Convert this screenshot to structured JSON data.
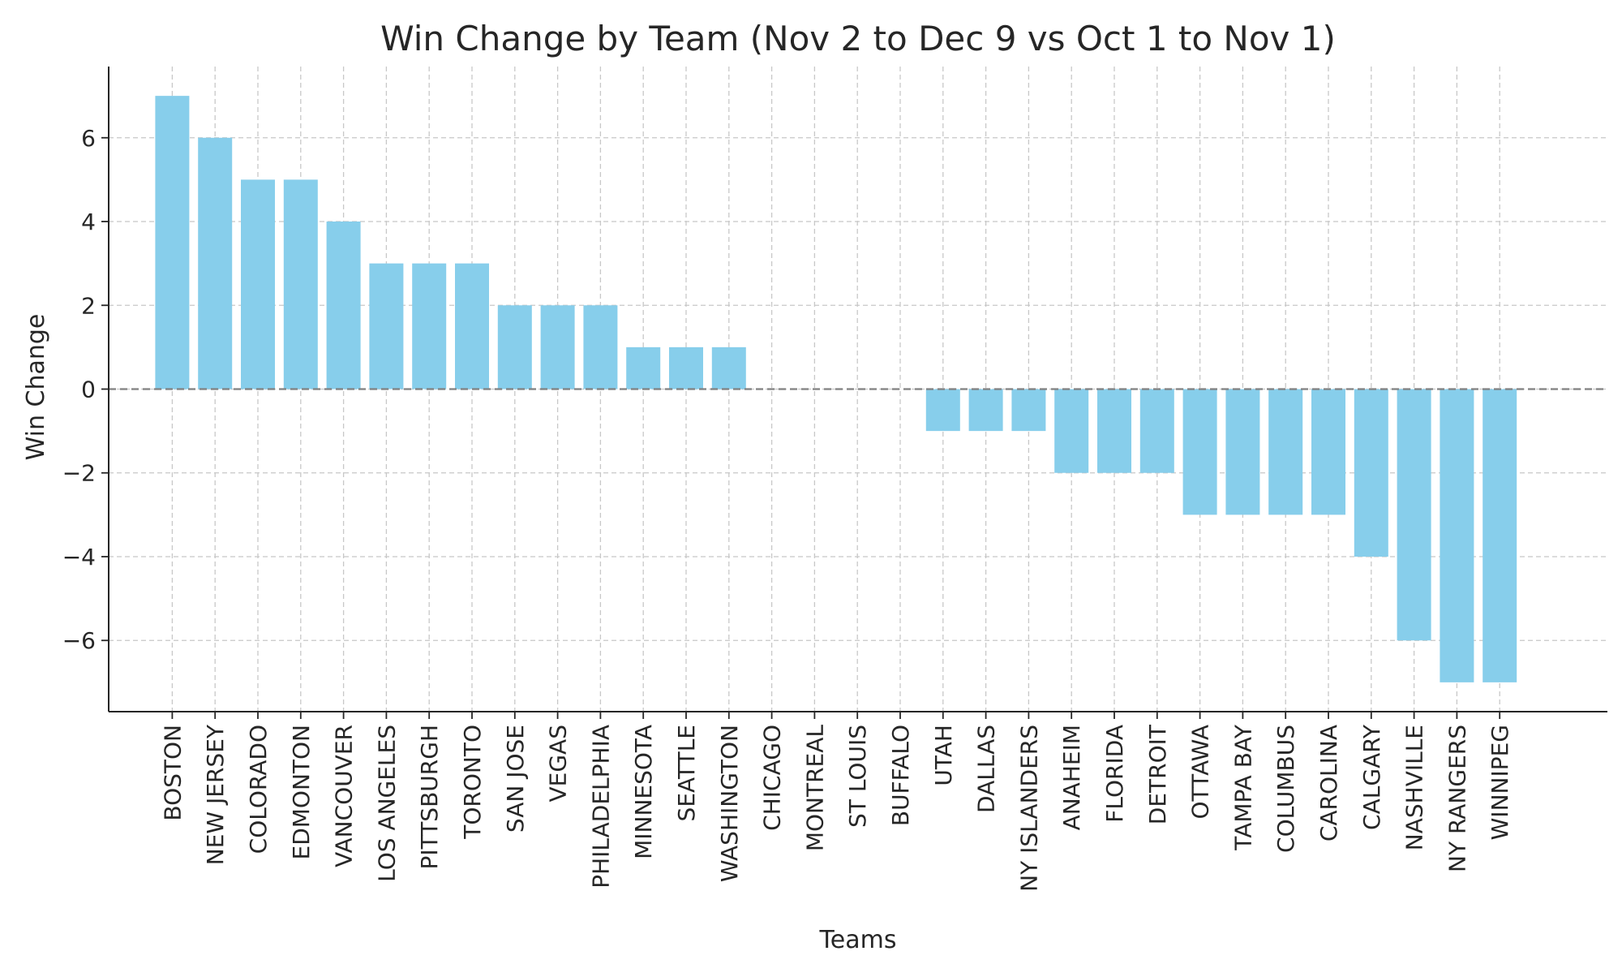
{
  "chart_data": {
    "type": "bar",
    "title": "Win Change by Team (Nov 2 to Dec 9 vs Oct 1 to Nov 1)",
    "xlabel": "Teams",
    "ylabel": "Win Change",
    "categories": [
      "BOSTON",
      "NEW JERSEY",
      "COLORADO",
      "EDMONTON",
      "VANCOUVER",
      "LOS ANGELES",
      "PITTSBURGH",
      "TORONTO",
      "SAN JOSE",
      "VEGAS",
      "PHILADELPHIA",
      "MINNESOTA",
      "SEATTLE",
      "WASHINGTON",
      "CHICAGO",
      "MONTREAL",
      "ST LOUIS",
      "BUFFALO",
      "UTAH",
      "DALLAS",
      "NY ISLANDERS",
      "ANAHEIM",
      "FLORIDA",
      "DETROIT",
      "OTTAWA",
      "TAMPA BAY",
      "COLUMBUS",
      "CAROLINA",
      "CALGARY",
      "NASHVILLE",
      "NY RANGERS",
      "WINNIPEG"
    ],
    "values": [
      7,
      6,
      5,
      5,
      4,
      3,
      3,
      3,
      2,
      2,
      2,
      1,
      1,
      1,
      0,
      0,
      0,
      0,
      -1,
      -1,
      -1,
      -2,
      -2,
      -2,
      -3,
      -3,
      -3,
      -3,
      -4,
      -6,
      -7,
      -7
    ],
    "yticks": [
      6,
      4,
      2,
      0,
      -2,
      -4,
      -6
    ],
    "ytick_labels": [
      "6",
      "4",
      "2",
      "0",
      "−2",
      "−4",
      "−6"
    ],
    "ylim": [
      -7.7,
      7.7
    ],
    "grid": true,
    "zero_line": "dashed",
    "bar_color": "#87ceeb",
    "grid_color": "#c8c8c8",
    "zero_line_color": "#808080"
  }
}
